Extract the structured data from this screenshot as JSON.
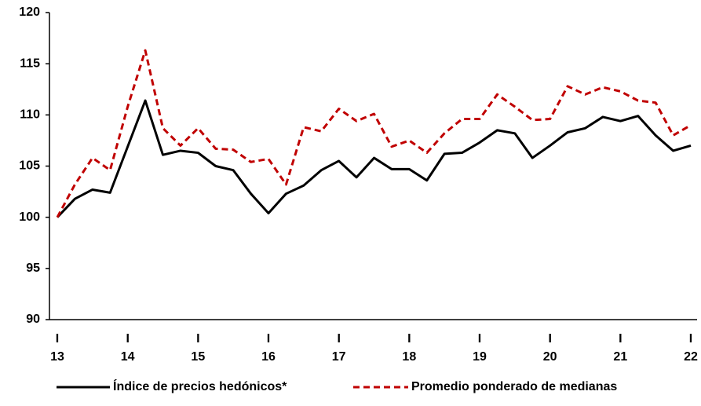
{
  "chart_data": {
    "type": "line",
    "quarters": [
      "I",
      null,
      null,
      null,
      "I",
      null,
      null,
      null,
      "I",
      null,
      null,
      null,
      "I",
      null,
      null,
      null,
      "I",
      null,
      null,
      null,
      "I",
      null,
      null,
      null,
      "I",
      null,
      null,
      null,
      "I",
      null,
      null,
      null,
      "I",
      null,
      null,
      null,
      "I"
    ],
    "years": [
      "13",
      null,
      null,
      null,
      "14",
      null,
      null,
      null,
      "15",
      null,
      null,
      null,
      "16",
      null,
      null,
      null,
      "17",
      null,
      null,
      null,
      "18",
      null,
      null,
      null,
      "19",
      null,
      null,
      null,
      "20",
      null,
      null,
      null,
      "21",
      null,
      null,
      null,
      "22"
    ],
    "series": [
      {
        "name": "Índice de precios hedónicos*",
        "color": "#000000",
        "dash": false,
        "values": [
          100,
          101.8,
          102.7,
          102.4,
          106.9,
          111.4,
          106.1,
          106.5,
          106.3,
          105,
          104.6,
          102.3,
          100.4,
          102.3,
          103.1,
          104.6,
          105.5,
          103.9,
          105.8,
          104.7,
          104.7,
          103.6,
          106.2,
          106.3,
          107.3,
          108.5,
          108.2,
          105.8,
          107,
          108.3,
          108.7,
          109.8,
          109.4,
          109.9,
          108,
          106.5,
          107
        ]
      },
      {
        "name": "Promedio ponderado de medianas",
        "color": "#c00000",
        "dash": true,
        "values": [
          100,
          103.2,
          105.8,
          104.6,
          110.8,
          116.3,
          108.7,
          107,
          108.7,
          106.7,
          106.6,
          105.4,
          105.7,
          103.2,
          108.8,
          108.4,
          110.6,
          109.4,
          110.1,
          106.9,
          107.5,
          106.3,
          108.2,
          109.6,
          109.6,
          112,
          110.8,
          109.5,
          109.6,
          112.8,
          112,
          112.7,
          112.3,
          111.4,
          111.2,
          108,
          109
        ]
      }
    ],
    "ylim": [
      90,
      120
    ],
    "yticks": [
      90,
      95,
      100,
      105,
      110,
      115,
      120
    ],
    "legend": "bottom"
  }
}
